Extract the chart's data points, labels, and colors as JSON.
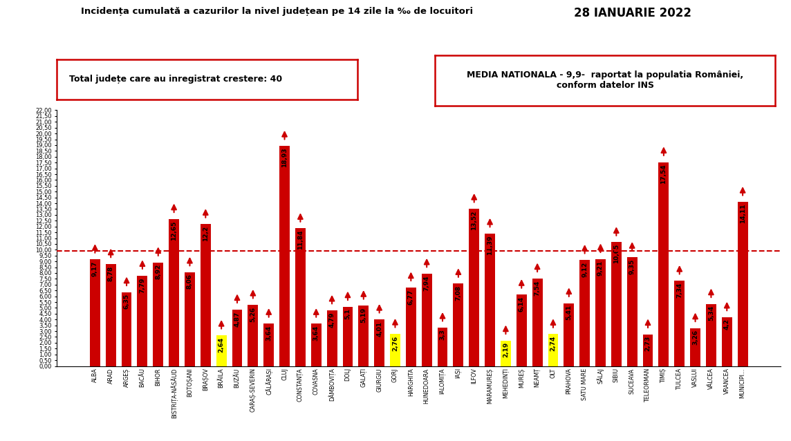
{
  "title": "Incidența cumulată a cazurilor la nivel județean pe 14 zile la ‰ de locuitori",
  "date": "28 IANUARIE 2022",
  "subtitle1": "Total județe care au inregistrat crestere: 40",
  "subtitle2": "MEDIA NATIONALA - 9,9-  raportat la populatia României,\nconform datelor INS",
  "reference_line": 9.9,
  "categories": [
    "ALBA",
    "ARAD",
    "ARGEȘ",
    "BACĂU",
    "BIHOR",
    "BISTRIȚA-NĂSĂUD",
    "BOTOȘANI",
    "BRAȘOV",
    "BRĂILA",
    "BUZĂU",
    "CARAȘ-SEVERIN",
    "CĂLĂRAȘI",
    "CLUJ",
    "CONSTANȚA",
    "COVASNA",
    "DÂMBOVIȚA",
    "DOLJ",
    "GALAȚI",
    "GIURGIU",
    "GORJ",
    "HARGHITA",
    "HUNEDOARA",
    "IALOMIȚA",
    "IAȘI",
    "ILFOV",
    "MARAMUREȘ",
    "MEHEDINȚI",
    "MUREȘ",
    "NEAMȚ",
    "OLT",
    "PRAHOVA",
    "SATU MARE",
    "SĂLAJ",
    "SIBIU",
    "SUCEAVA",
    "TELEORMAN",
    "TIMIȘ",
    "TULCEA",
    "VASLUI",
    "VÂLCEA",
    "VRANCEA",
    "MUNICIPI..."
  ],
  "values": [
    9.17,
    8.78,
    6.35,
    7.79,
    8.92,
    12.65,
    8.06,
    12.2,
    2.64,
    4.87,
    5.26,
    3.64,
    18.93,
    11.84,
    3.64,
    4.79,
    5.1,
    5.19,
    4.01,
    2.76,
    6.77,
    7.94,
    3.3,
    7.08,
    13.52,
    11.39,
    2.19,
    6.14,
    7.54,
    2.74,
    5.41,
    9.12,
    9.21,
    10.65,
    9.35,
    2.73,
    17.54,
    7.34,
    3.26,
    5.34,
    4.2,
    14.11
  ],
  "bar_colors": [
    "#cc0000",
    "#cc0000",
    "#cc0000",
    "#cc0000",
    "#cc0000",
    "#cc0000",
    "#cc0000",
    "#cc0000",
    "#ffff00",
    "#cc0000",
    "#cc0000",
    "#cc0000",
    "#cc0000",
    "#cc0000",
    "#cc0000",
    "#cc0000",
    "#cc0000",
    "#cc0000",
    "#cc0000",
    "#ffff00",
    "#cc0000",
    "#cc0000",
    "#cc0000",
    "#cc0000",
    "#cc0000",
    "#cc0000",
    "#ffff00",
    "#cc0000",
    "#cc0000",
    "#ffff00",
    "#cc0000",
    "#cc0000",
    "#cc0000",
    "#cc0000",
    "#cc0000",
    "#cc0000",
    "#cc0000",
    "#cc0000",
    "#cc0000",
    "#cc0000",
    "#cc0000",
    "#cc0000"
  ],
  "ylim": [
    0,
    22
  ],
  "yticks": [
    0.0,
    0.5,
    1.0,
    1.5,
    2.0,
    2.5,
    3.0,
    3.5,
    4.0,
    4.5,
    5.0,
    5.5,
    6.0,
    6.5,
    7.0,
    7.5,
    8.0,
    8.5,
    9.0,
    9.5,
    10.0,
    10.5,
    11.0,
    11.5,
    12.0,
    12.5,
    13.0,
    13.5,
    14.0,
    14.5,
    15.0,
    15.5,
    16.0,
    16.5,
    17.0,
    17.5,
    18.0,
    18.5,
    19.0,
    19.5,
    20.0,
    20.5,
    21.0,
    21.5,
    22.0
  ],
  "ytick_labels": [
    "0,00",
    "0,50",
    "1,00",
    "1,50",
    "2,00",
    "2,50",
    "3,00",
    "3,50",
    "4,00",
    "4,50",
    "5,00",
    "5,50",
    "6,00",
    "6,50",
    "7,00",
    "7,50",
    "8,00",
    "8,50",
    "9,00",
    "9,50",
    "10,00",
    "10,50",
    "11,00",
    "11,50",
    "12,00",
    "12,50",
    "13,00",
    "13,50",
    "14,00",
    "14,50",
    "15,00",
    "15,50",
    "16,00",
    "16,50",
    "17,00",
    "17,50",
    "18,00",
    "18,50",
    "19,00",
    "19,50",
    "20,00",
    "20,50",
    "21,00",
    "21,50",
    "22,00"
  ],
  "arrow_color": "#cc0000",
  "ref_line_color": "#cc0000",
  "background_color": "#ffffff",
  "bar_width": 0.65
}
